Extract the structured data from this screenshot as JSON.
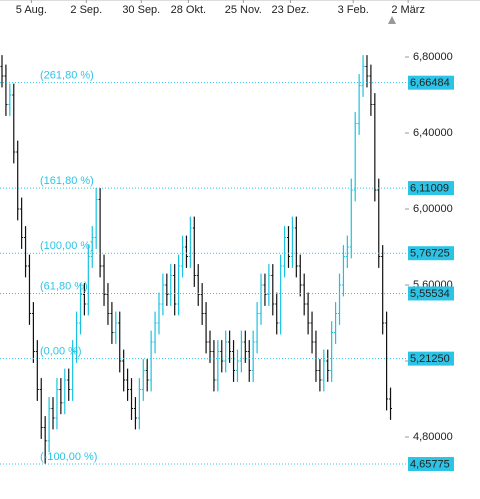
{
  "chart_data": {
    "type": "ohlc",
    "xlim": [
      0,
      106
    ],
    "xticks": [
      {
        "value": 8,
        "label": "5 Aug."
      },
      {
        "value": 22,
        "label": "2 Sep."
      },
      {
        "value": 36,
        "label": "30 Sep."
      },
      {
        "value": 48,
        "label": "28 Okt."
      },
      {
        "value": 62,
        "label": "25 Nov."
      },
      {
        "value": 74,
        "label": "23 Dez."
      },
      {
        "value": 90,
        "label": "3 Feb."
      },
      {
        "value": 104,
        "label": "2 März"
      }
    ],
    "ylim": [
      4.55,
      7.0
    ],
    "yticks": [
      {
        "value": 4.8,
        "label": "4,80000"
      },
      {
        "value": 5.2,
        "label": "5,20000"
      },
      {
        "value": 5.6,
        "label": "5,60000"
      },
      {
        "value": 6.0,
        "label": "6,00000"
      },
      {
        "value": 6.4,
        "label": "6,40000"
      },
      {
        "value": 6.8,
        "label": "6,80000"
      }
    ],
    "up_color": "#19c3e0",
    "down_color": "#111111",
    "level_color": "#2cc4e6",
    "open": [
      6.75,
      6.7,
      6.55,
      6.6,
      6.3,
      6.0,
      5.85,
      5.7,
      5.45,
      5.25,
      5.05,
      4.85,
      4.78,
      4.95,
      4.9,
      5.05,
      4.98,
      5.1,
      5.05,
      5.25,
      5.4,
      5.55,
      5.5,
      5.75,
      5.85,
      6.05,
      5.7,
      5.55,
      5.45,
      5.35,
      5.4,
      5.2,
      5.1,
      5.05,
      4.95,
      4.9,
      5.05,
      5.15,
      5.1,
      5.3,
      5.4,
      5.5,
      5.6,
      5.55,
      5.65,
      5.5,
      5.7,
      5.8,
      5.75,
      5.9,
      5.65,
      5.55,
      5.45,
      5.3,
      5.25,
      5.1,
      5.25,
      5.2,
      5.3,
      5.25,
      5.15,
      5.2,
      5.3,
      5.25,
      5.15,
      5.3,
      5.45,
      5.6,
      5.55,
      5.65,
      5.5,
      5.4,
      5.7,
      5.85,
      5.75,
      5.9,
      5.7,
      5.6,
      5.5,
      5.4,
      5.3,
      5.15,
      5.1,
      5.2,
      5.15,
      5.35,
      5.45,
      5.6,
      5.75,
      5.8,
      6.1,
      6.45,
      6.65,
      6.75,
      6.7,
      6.55,
      6.1,
      5.75,
      5.4,
      5.0
    ],
    "high": [
      6.81,
      6.76,
      6.66,
      6.66,
      6.36,
      6.06,
      5.91,
      5.76,
      5.51,
      5.31,
      5.11,
      4.91,
      5.01,
      5.01,
      5.11,
      5.11,
      5.16,
      5.16,
      5.31,
      5.46,
      5.61,
      5.61,
      5.81,
      5.91,
      6.11,
      6.11,
      5.76,
      5.61,
      5.51,
      5.46,
      5.46,
      5.26,
      5.16,
      5.11,
      5.01,
      5.11,
      5.21,
      5.21,
      5.36,
      5.46,
      5.56,
      5.66,
      5.66,
      5.71,
      5.71,
      5.76,
      5.86,
      5.86,
      5.96,
      5.96,
      5.71,
      5.61,
      5.51,
      5.36,
      5.31,
      5.31,
      5.31,
      5.36,
      5.36,
      5.31,
      5.26,
      5.36,
      5.36,
      5.31,
      5.36,
      5.51,
      5.66,
      5.66,
      5.71,
      5.71,
      5.56,
      5.76,
      5.91,
      5.91,
      5.96,
      5.96,
      5.76,
      5.66,
      5.56,
      5.46,
      5.36,
      5.21,
      5.26,
      5.26,
      5.41,
      5.51,
      5.66,
      5.81,
      5.86,
      6.16,
      6.51,
      6.71,
      6.81,
      6.81,
      6.76,
      6.61,
      6.16,
      5.81,
      5.46,
      5.06
    ],
    "low": [
      6.64,
      6.49,
      6.49,
      6.24,
      5.94,
      5.79,
      5.64,
      5.39,
      5.19,
      4.99,
      4.79,
      4.66,
      4.72,
      4.84,
      4.84,
      4.92,
      4.92,
      4.99,
      4.99,
      5.19,
      5.34,
      5.44,
      5.44,
      5.69,
      5.79,
      5.64,
      5.49,
      5.39,
      5.29,
      5.29,
      5.14,
      5.04,
      4.99,
      4.89,
      4.84,
      4.84,
      4.99,
      5.04,
      5.04,
      5.24,
      5.34,
      5.44,
      5.49,
      5.49,
      5.44,
      5.44,
      5.64,
      5.69,
      5.69,
      5.59,
      5.49,
      5.39,
      5.24,
      5.19,
      5.04,
      5.04,
      5.14,
      5.14,
      5.19,
      5.09,
      5.09,
      5.14,
      5.19,
      5.09,
      5.09,
      5.24,
      5.39,
      5.49,
      5.49,
      5.44,
      5.34,
      5.34,
      5.64,
      5.69,
      5.69,
      5.64,
      5.54,
      5.44,
      5.34,
      5.24,
      5.09,
      5.04,
      5.04,
      5.09,
      5.09,
      5.29,
      5.39,
      5.54,
      5.69,
      5.74,
      6.04,
      6.39,
      6.59,
      6.64,
      6.49,
      6.04,
      5.69,
      5.34,
      4.94,
      4.89
    ],
    "close": [
      6.7,
      6.55,
      6.6,
      6.3,
      6.0,
      5.85,
      5.7,
      5.45,
      5.25,
      5.05,
      4.85,
      4.78,
      4.95,
      4.9,
      5.05,
      4.98,
      5.1,
      5.05,
      5.25,
      5.4,
      5.55,
      5.5,
      5.75,
      5.85,
      6.05,
      5.7,
      5.55,
      5.45,
      5.35,
      5.4,
      5.2,
      5.1,
      5.05,
      4.95,
      4.9,
      5.05,
      5.15,
      5.1,
      5.3,
      5.4,
      5.5,
      5.6,
      5.55,
      5.65,
      5.5,
      5.7,
      5.8,
      5.75,
      5.9,
      5.65,
      5.55,
      5.45,
      5.3,
      5.25,
      5.1,
      5.25,
      5.2,
      5.3,
      5.25,
      5.15,
      5.2,
      5.3,
      5.25,
      5.15,
      5.3,
      5.45,
      5.6,
      5.55,
      5.65,
      5.5,
      5.4,
      5.7,
      5.85,
      5.75,
      5.9,
      5.7,
      5.6,
      5.5,
      5.4,
      5.3,
      5.15,
      5.1,
      5.2,
      5.15,
      5.35,
      5.45,
      5.6,
      5.75,
      5.8,
      6.1,
      6.45,
      6.65,
      6.75,
      6.7,
      6.55,
      6.1,
      5.75,
      5.4,
      5.0,
      4.95
    ],
    "levels": [
      {
        "name": "(261,80 %)",
        "value": 6.66484,
        "value_label": "6,66484"
      },
      {
        "name": "(161,80 %)",
        "value": 6.11009,
        "value_label": "6,11009"
      },
      {
        "name": "(100,00 %)",
        "value": 5.76725,
        "value_label": "5,76725"
      },
      {
        "name": "(61,80 %)",
        "value": 5.55534,
        "value_label": "5,55534"
      },
      {
        "name": "(0,00 %)",
        "value": 5.2125,
        "value_label": "5,21250"
      },
      {
        "name": "(-100,00 %)",
        "value": 4.65775,
        "value_label": "4,65775"
      }
    ]
  }
}
